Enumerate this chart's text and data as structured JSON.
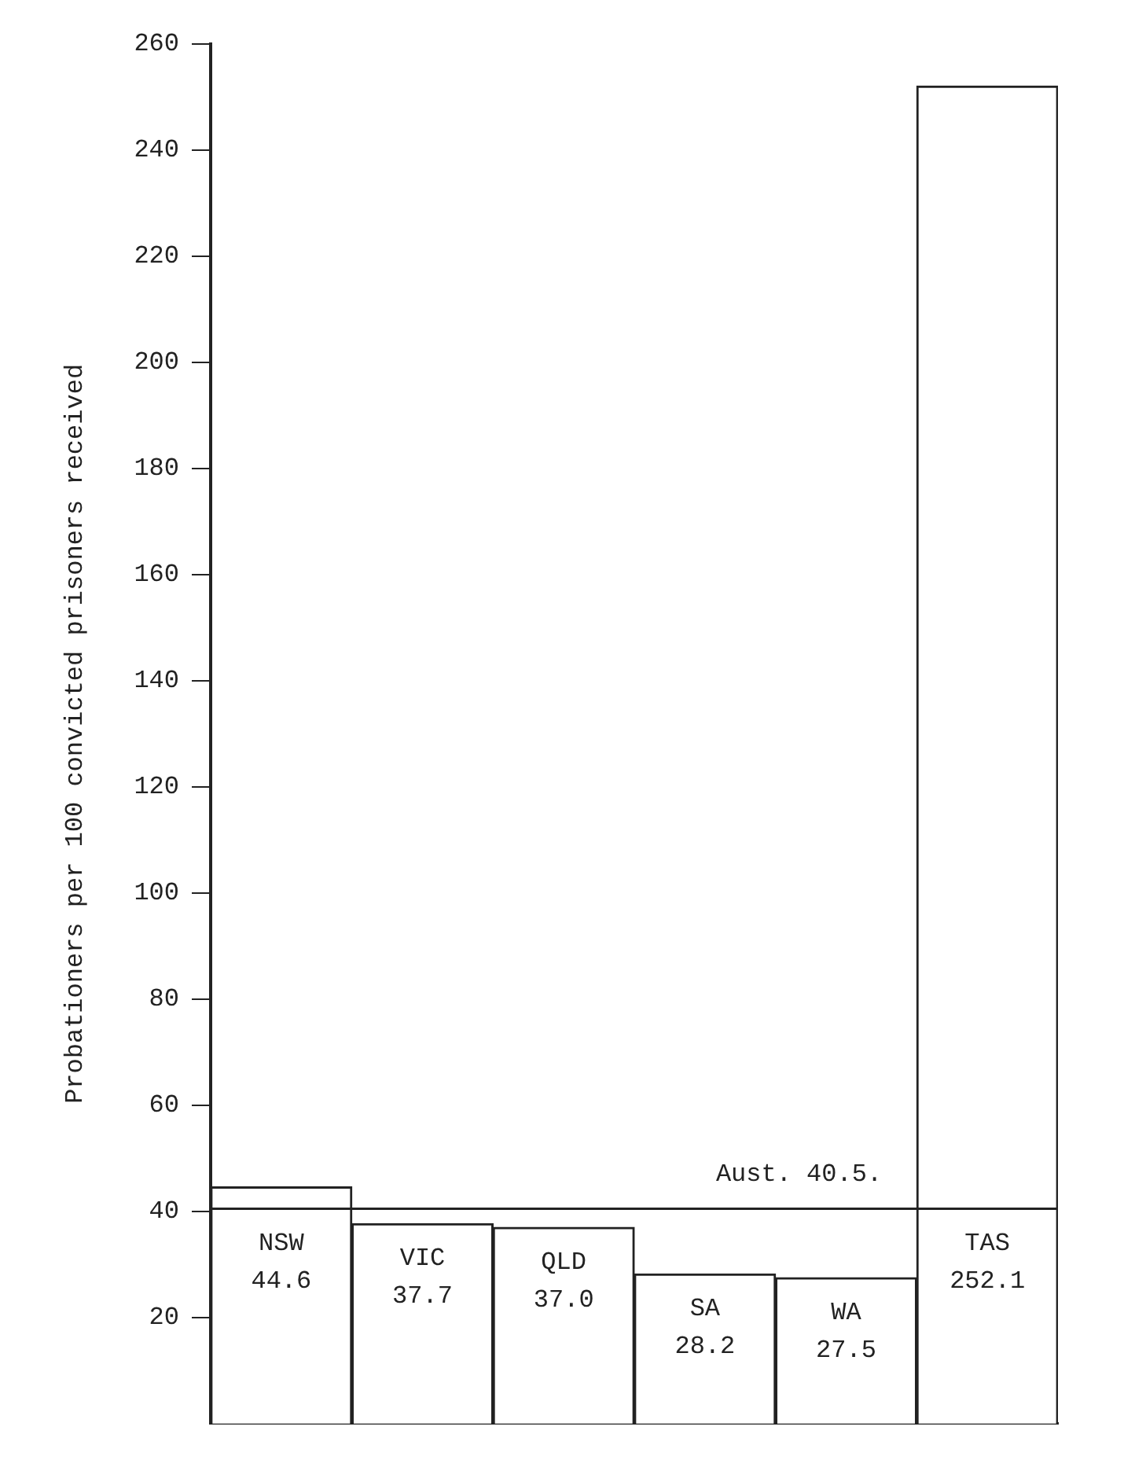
{
  "chart_data": {
    "type": "bar",
    "ylabel": "Probationers per 100 convicted prisoners received",
    "categories": [
      "NSW",
      "VIC",
      "QLD",
      "SA",
      "WA",
      "TAS"
    ],
    "values": [
      44.6,
      37.7,
      37.0,
      28.2,
      27.5,
      252.1
    ],
    "color": "#ffffff",
    "ylim": [
      0,
      260
    ],
    "yticks": [
      20,
      40,
      60,
      80,
      100,
      120,
      140,
      160,
      180,
      200,
      220,
      240,
      260
    ],
    "value_labels": [
      "44.6",
      "37.7",
      "37.0",
      "28.2",
      "27.5",
      "252.1"
    ],
    "grid": false,
    "legend": false,
    "ref_lines": [
      {
        "axis": "y",
        "value": 40.5,
        "label": "Aust. 40.5."
      }
    ]
  }
}
